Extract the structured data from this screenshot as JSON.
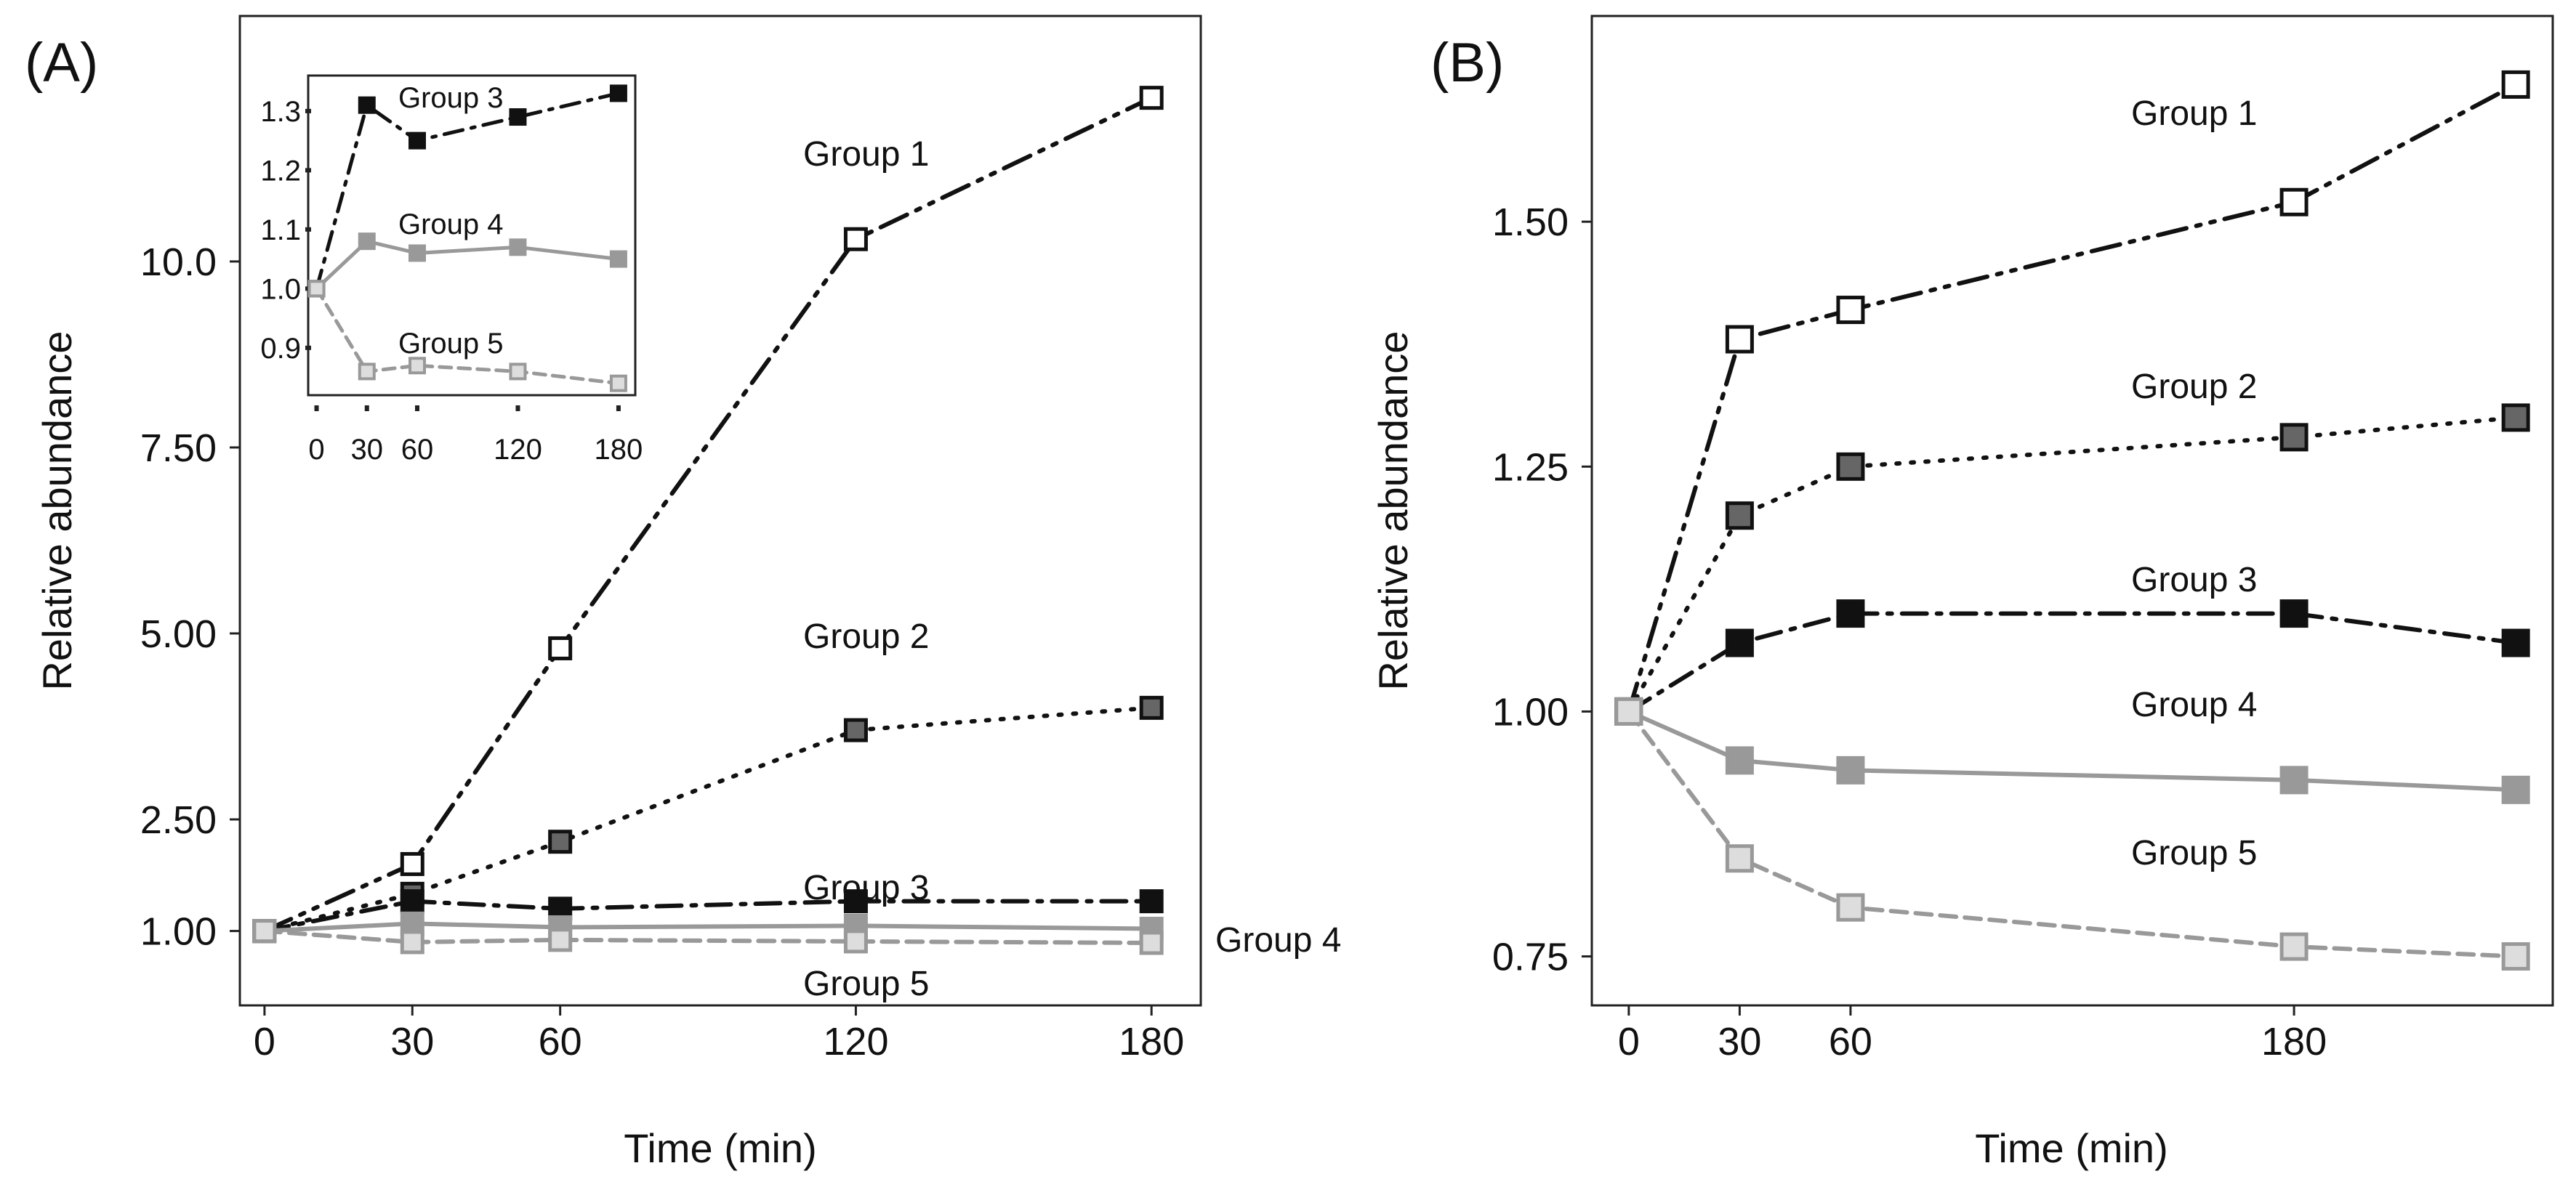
{
  "chart_data": [
    {
      "id": "A",
      "type": "line",
      "panel_label": "(A)",
      "title": "",
      "xlabel": "Time (min)",
      "ylabel": "Relative abundance",
      "x": [
        0,
        30,
        60,
        120,
        180
      ],
      "x_ticks": [
        "0",
        "30",
        "60",
        "120",
        "180"
      ],
      "y_ticks": [
        "1.00",
        "2.50",
        "5.00",
        "7.50",
        "10.0"
      ],
      "xlim": [
        -5,
        190
      ],
      "ylim": [
        0,
        13.3
      ],
      "series": [
        {
          "name": "Group 1",
          "values": [
            1.0,
            1.9,
            4.8,
            10.3,
            12.2
          ],
          "color": "#111111",
          "dash": "40,14,6,14,6,14",
          "marker_fill": "#ffffff",
          "marker_stroke": "#111111"
        },
        {
          "name": "Group 2",
          "values": [
            1.0,
            1.5,
            2.2,
            3.7,
            4.0
          ],
          "color": "#111111",
          "dash": "4,16",
          "marker_fill": "#666666",
          "marker_stroke": "#111111"
        },
        {
          "name": "Group 3",
          "values": [
            1.0,
            1.4,
            1.3,
            1.4,
            1.4
          ],
          "color": "#111111",
          "dash": "34,14,6,14",
          "marker_fill": "#111111",
          "marker_stroke": "#111111"
        },
        {
          "name": "Group 4",
          "values": [
            1.0,
            1.1,
            1.05,
            1.07,
            1.03
          ],
          "color": "#999999",
          "dash": "",
          "marker_fill": "#999999",
          "marker_stroke": "#999999"
        },
        {
          "name": "Group 5",
          "values": [
            1.0,
            0.85,
            0.88,
            0.86,
            0.84
          ],
          "color": "#999999",
          "dash": "22,12",
          "marker_fill": "#dddddd",
          "marker_stroke": "#999999"
        }
      ],
      "grid": false,
      "legend": "none"
    },
    {
      "id": "A-inset",
      "type": "line",
      "title": "",
      "xlabel": "",
      "ylabel": "",
      "x": [
        0,
        30,
        60,
        120,
        180
      ],
      "x_ticks": [
        "0",
        "30",
        "60",
        "120",
        "180"
      ],
      "y_ticks": [
        "0.9",
        "1.0",
        "1.1",
        "1.2",
        "1.3"
      ],
      "xlim": [
        -5,
        190
      ],
      "ylim": [
        0.82,
        1.36
      ],
      "series": [
        {
          "name": "Group 3",
          "values": [
            1.0,
            1.31,
            1.25,
            1.29,
            1.33
          ],
          "color": "#111111",
          "dash": "26,12,5,12",
          "marker_fill": "#111111",
          "marker_stroke": "#111111"
        },
        {
          "name": "Group 4",
          "values": [
            1.0,
            1.08,
            1.06,
            1.07,
            1.05
          ],
          "color": "#999999",
          "dash": "",
          "marker_fill": "#999999",
          "marker_stroke": "#999999"
        },
        {
          "name": "Group 5",
          "values": [
            1.0,
            0.86,
            0.87,
            0.86,
            0.84
          ],
          "color": "#999999",
          "dash": "16,10",
          "marker_fill": "#dddddd",
          "marker_stroke": "#999999"
        }
      ],
      "grid": false,
      "legend": "none"
    },
    {
      "id": "B",
      "type": "line",
      "panel_label": "(B)",
      "title": "",
      "xlabel": "Time (min)",
      "ylabel": "Relative abundance",
      "x": [
        0,
        30,
        60,
        180,
        240
      ],
      "x_ticks": [
        "0",
        "30",
        "60",
        "180"
      ],
      "x_tick_values": [
        0,
        30,
        60,
        180
      ],
      "y_ticks": [
        "0.75",
        "1.00",
        "1.25",
        "1.50"
      ],
      "xlim": [
        -10,
        250
      ],
      "ylim": [
        0.7,
        1.71
      ],
      "series": [
        {
          "name": "Group 1",
          "values": [
            1.0,
            1.38,
            1.41,
            1.52,
            1.64
          ],
          "color": "#111111",
          "dash": "40,14,6,14,6,14",
          "marker_fill": "#ffffff",
          "marker_stroke": "#111111"
        },
        {
          "name": "Group 2",
          "values": [
            1.0,
            1.2,
            1.25,
            1.28,
            1.3
          ],
          "color": "#111111",
          "dash": "4,16",
          "marker_fill": "#666666",
          "marker_stroke": "#111111"
        },
        {
          "name": "Group 3",
          "values": [
            1.0,
            1.07,
            1.1,
            1.1,
            1.07
          ],
          "color": "#111111",
          "dash": "34,14,6,14",
          "marker_fill": "#111111",
          "marker_stroke": "#111111"
        },
        {
          "name": "Group 4",
          "values": [
            1.0,
            0.95,
            0.94,
            0.93,
            0.92
          ],
          "color": "#999999",
          "dash": "",
          "marker_fill": "#999999",
          "marker_stroke": "#999999"
        },
        {
          "name": "Group 5",
          "values": [
            1.0,
            0.85,
            0.8,
            0.76,
            0.75
          ],
          "color": "#999999",
          "dash": "22,12",
          "marker_fill": "#dddddd",
          "marker_stroke": "#999999"
        }
      ],
      "grid": false,
      "legend": "none"
    }
  ]
}
